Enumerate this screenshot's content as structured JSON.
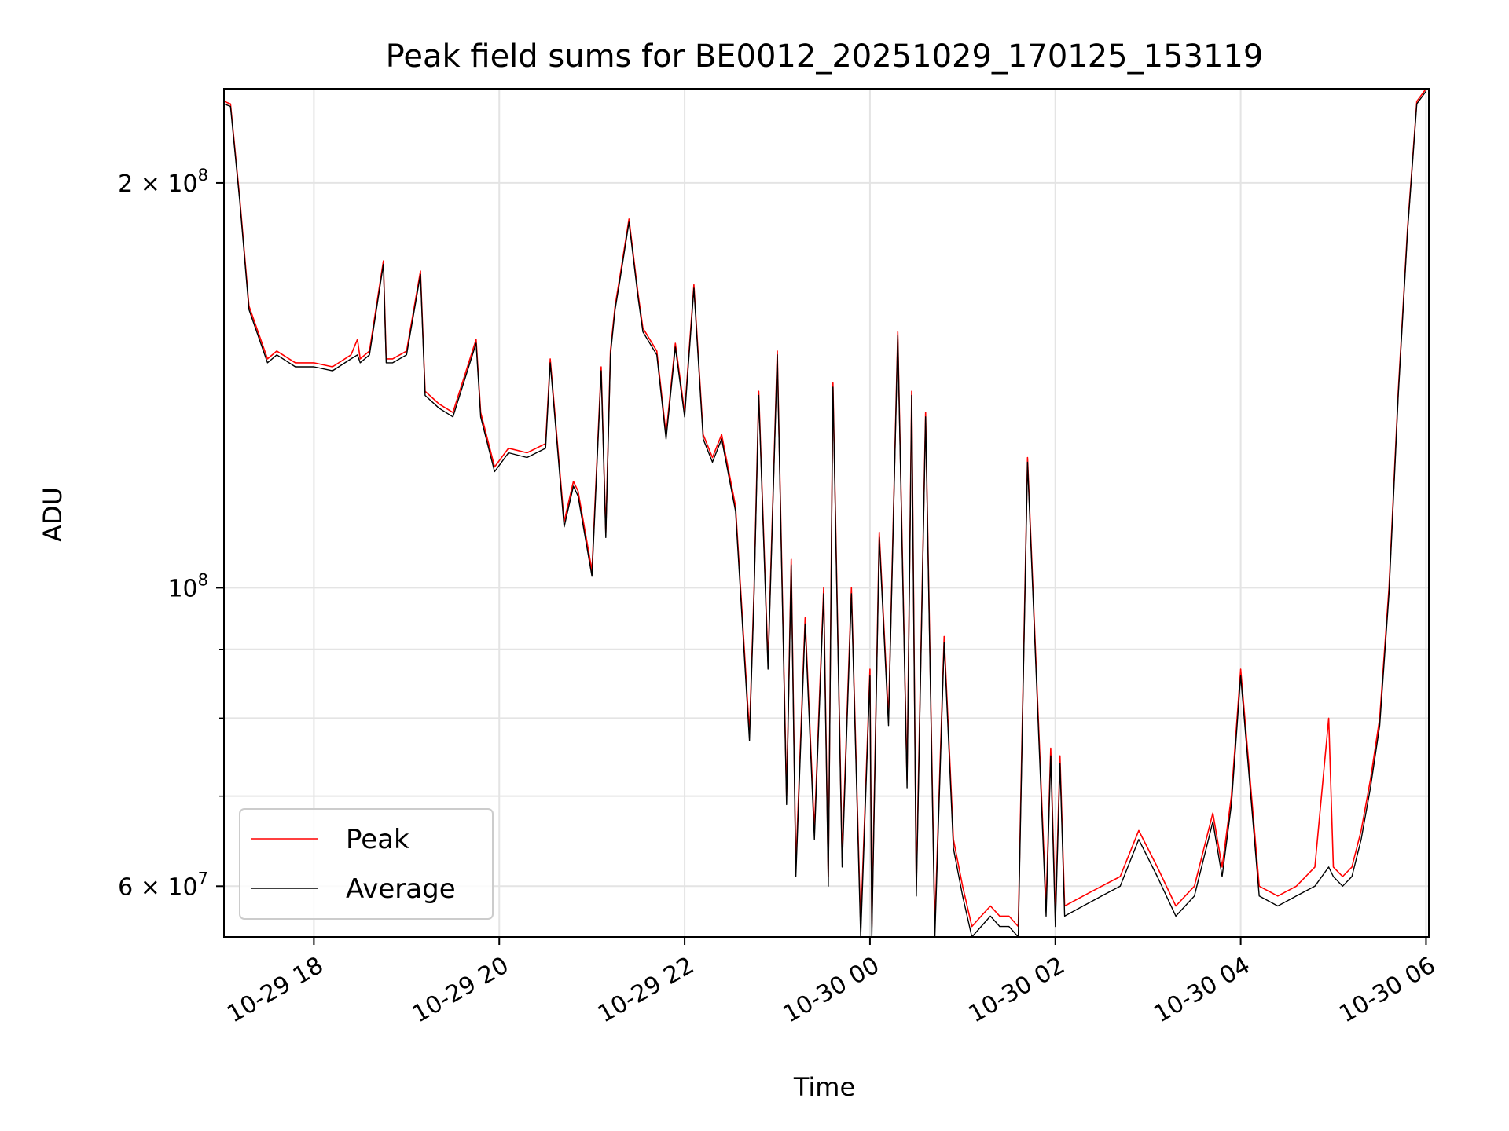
{
  "chart_data": {
    "type": "line",
    "title": "Peak field sums for BE0012_20251029_170125_153119",
    "xlabel": "Time",
    "ylabel": "ADU",
    "yscale": "log",
    "ylim": [
      55000000,
      235000000
    ],
    "xlim_hours": [
      17.03,
      30.03
    ],
    "x_ticks": [
      {
        "hour": 18,
        "label": "10-29 18"
      },
      {
        "hour": 20,
        "label": "10-29 20"
      },
      {
        "hour": 22,
        "label": "10-29 22"
      },
      {
        "hour": 24,
        "label": "10-30 00"
      },
      {
        "hour": 26,
        "label": "10-30 02"
      },
      {
        "hour": 28,
        "label": "10-30 04"
      },
      {
        "hour": 30,
        "label": "10-30 06"
      }
    ],
    "y_ticks": [
      {
        "value": 60000000,
        "base": "6 × 10",
        "exp": "7"
      },
      {
        "value": 100000000,
        "base": "10",
        "exp": "8"
      },
      {
        "value": 200000000,
        "base": "2 × 10",
        "exp": "8"
      }
    ],
    "y_minor_ticks": [
      70000000,
      80000000,
      90000000
    ],
    "grid": true,
    "legend_position": "lower-left",
    "series": [
      {
        "name": "Peak",
        "color": "#ff0000",
        "x_hours": [
          17.03,
          17.1,
          17.2,
          17.3,
          17.5,
          17.6,
          17.8,
          18,
          18.2,
          18.4,
          18.47,
          18.5,
          18.6,
          18.75,
          18.78,
          18.85,
          19,
          19.15,
          19.2,
          19.3,
          19.35,
          19.5,
          19.75,
          19.8,
          19.95,
          20.1,
          20.3,
          20.5,
          20.55,
          20.7,
          20.8,
          20.85,
          21,
          21.1,
          21.15,
          21.2,
          21.25,
          21.3,
          21.4,
          21.5,
          21.55,
          21.7,
          21.8,
          21.9,
          22,
          22.1,
          22.2,
          22.3,
          22.4,
          22.55,
          22.7,
          22.75,
          22.8,
          22.9,
          23,
          23.1,
          23.15,
          23.2,
          23.3,
          23.4,
          23.5,
          23.55,
          23.6,
          23.7,
          23.8,
          23.9,
          24,
          24.02,
          24.1,
          24.2,
          24.3,
          24.4,
          24.45,
          24.5,
          24.6,
          24.7,
          24.8,
          24.9,
          25,
          25.1,
          25.2,
          25.3,
          25.4,
          25.5,
          25.6,
          25.7,
          25.9,
          25.95,
          26.0,
          26.05,
          26.1,
          26.3,
          26.5,
          26.7,
          26.9,
          27.1,
          27.3,
          27.5,
          27.7,
          27.8,
          27.9,
          28,
          28.2,
          28.4,
          28.6,
          28.8,
          28.95,
          29.0,
          29.1,
          29.2,
          29.3,
          29.4,
          29.5,
          29.6,
          29.7,
          29.8,
          29.9,
          30.0
        ],
        "values": [
          230000000,
          229000000,
          195000000,
          162000000,
          148000000,
          150000000,
          147000000,
          147000000,
          146000000,
          149000000,
          153000000,
          148000000,
          150000000,
          175000000,
          148000000,
          148000000,
          150000000,
          172000000,
          140000000,
          138000000,
          137000000,
          135000000,
          153000000,
          135000000,
          123000000,
          127000000,
          126000000,
          128000000,
          148000000,
          112000000,
          120000000,
          118000000,
          103000000,
          146000000,
          110000000,
          150000000,
          162000000,
          170000000,
          188000000,
          165000000,
          156000000,
          150000000,
          130000000,
          152000000,
          135000000,
          168000000,
          130000000,
          125000000,
          130000000,
          115000000,
          78000000,
          100000000,
          140000000,
          88000000,
          150000000,
          70000000,
          105000000,
          62000000,
          95000000,
          66000000,
          100000000,
          61000000,
          142000000,
          63000000,
          100000000,
          56000000,
          87000000,
          56000000,
          110000000,
          80000000,
          155000000,
          72000000,
          140000000,
          60000000,
          135000000,
          56000000,
          92000000,
          65000000,
          60000000,
          56000000,
          57000000,
          58000000,
          57000000,
          57000000,
          56000000,
          125000000,
          58000000,
          76000000,
          57000000,
          75000000,
          58000000,
          59000000,
          60000000,
          61000000,
          66000000,
          62000000,
          58000000,
          60000000,
          68000000,
          62000000,
          70000000,
          87000000,
          60000000,
          59000000,
          60000000,
          62000000,
          80000000,
          62000000,
          61000000,
          62000000,
          66000000,
          72000000,
          80000000,
          100000000,
          140000000,
          185000000,
          230000000,
          235000000
        ]
      },
      {
        "name": "Average",
        "color": "#000000",
        "x_hours": [
          17.03,
          17.1,
          17.2,
          17.3,
          17.5,
          17.6,
          17.8,
          18,
          18.2,
          18.4,
          18.47,
          18.5,
          18.6,
          18.75,
          18.78,
          18.85,
          19,
          19.15,
          19.2,
          19.3,
          19.35,
          19.5,
          19.75,
          19.8,
          19.95,
          20.1,
          20.3,
          20.5,
          20.55,
          20.7,
          20.8,
          20.85,
          21,
          21.1,
          21.15,
          21.2,
          21.25,
          21.3,
          21.4,
          21.5,
          21.55,
          21.7,
          21.8,
          21.9,
          22,
          22.1,
          22.2,
          22.3,
          22.4,
          22.55,
          22.7,
          22.75,
          22.8,
          22.9,
          23,
          23.1,
          23.15,
          23.2,
          23.3,
          23.4,
          23.5,
          23.55,
          23.6,
          23.7,
          23.8,
          23.9,
          24,
          24.02,
          24.1,
          24.2,
          24.3,
          24.4,
          24.45,
          24.5,
          24.6,
          24.7,
          24.8,
          24.9,
          25,
          25.1,
          25.2,
          25.3,
          25.4,
          25.5,
          25.6,
          25.7,
          25.9,
          25.95,
          26.0,
          26.05,
          26.1,
          26.3,
          26.5,
          26.7,
          26.9,
          27.1,
          27.3,
          27.5,
          27.7,
          27.8,
          27.9,
          28,
          28.2,
          28.4,
          28.6,
          28.8,
          28.95,
          29.0,
          29.1,
          29.2,
          29.3,
          29.4,
          29.5,
          29.6,
          29.7,
          29.8,
          29.9,
          30.0
        ],
        "values": [
          229000000,
          228000000,
          194000000,
          161000000,
          147000000,
          149000000,
          146000000,
          146000000,
          145000000,
          148000000,
          149000000,
          147000000,
          149000000,
          174000000,
          147000000,
          147000000,
          149000000,
          171000000,
          139000000,
          137000000,
          136000000,
          134000000,
          152000000,
          134000000,
          122000000,
          126000000,
          125000000,
          127000000,
          147000000,
          111000000,
          119000000,
          117000000,
          102000000,
          145000000,
          109000000,
          149000000,
          161000000,
          169000000,
          187000000,
          164000000,
          155000000,
          149000000,
          129000000,
          151000000,
          134000000,
          167000000,
          129000000,
          124000000,
          129000000,
          114000000,
          77000000,
          99000000,
          139000000,
          87000000,
          149000000,
          69000000,
          104000000,
          61000000,
          94000000,
          65000000,
          99000000,
          60000000,
          141000000,
          62000000,
          99000000,
          55000000,
          86000000,
          55000000,
          109000000,
          79000000,
          154000000,
          71000000,
          139000000,
          59000000,
          134000000,
          55000000,
          91000000,
          64000000,
          59000000,
          55000000,
          56000000,
          57000000,
          56000000,
          56000000,
          55000000,
          124000000,
          57000000,
          75000000,
          56000000,
          74000000,
          57000000,
          58000000,
          59000000,
          60000000,
          65000000,
          61000000,
          57000000,
          59000000,
          67000000,
          61000000,
          69000000,
          86000000,
          59000000,
          58000000,
          59000000,
          60000000,
          62000000,
          61000000,
          60000000,
          61000000,
          65000000,
          71000000,
          79000000,
          99000000,
          139000000,
          184000000,
          229000000,
          234000000
        ]
      }
    ]
  }
}
